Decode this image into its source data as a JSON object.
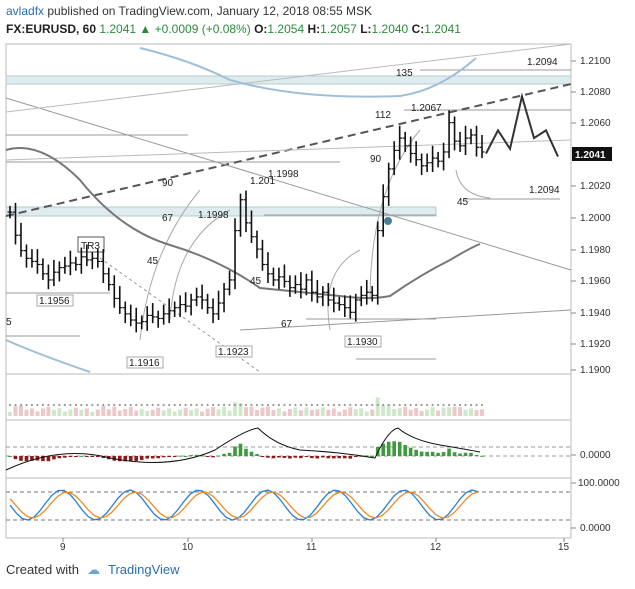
{
  "header": {
    "author": "avladfx",
    "published_text": "published on TradingView.com, January 12, 2018 08:55 MSK",
    "symbol": "FX:EURUSD, 60",
    "last": "1.2041",
    "change": "+0.0009 (+0.08%)",
    "o_label": "O:",
    "o_value": "1.2054",
    "h_label": "H:",
    "h_value": "1.2057",
    "l_label": "L:",
    "l_value": "1.2040",
    "c_label": "C:",
    "c_value": "1.2041"
  },
  "footer": {
    "created_with": "Created with",
    "brand": "TradingView"
  },
  "colors": {
    "up": "#2c8a3c",
    "bars": "#111111",
    "ma": "#777777",
    "blue_line": "#9fbfd8",
    "zone": "#dfecef",
    "macd_up": "#3e9a3e",
    "macd_down": "#8b1a1a",
    "stoch_k": "#2a7fd4",
    "stoch_d": "#f08a24"
  },
  "chart_data": {
    "type": "bar",
    "ohlc_series": "EURUSD hourly",
    "x_ticks": [
      "9",
      "10",
      "11",
      "12",
      "15"
    ],
    "y_ticks": [
      "1.2100",
      "1.2080",
      "1.2060",
      "1.2020",
      "1.2000",
      "1.1980",
      "1.1960",
      "1.1940",
      "1.1920",
      "1.1900"
    ],
    "ylim": [
      1.1897,
      1.2111
    ],
    "last_price": "1.2041",
    "annotations": [
      "1.2094",
      "135",
      "112",
      "1.2067",
      "90",
      "1.2094",
      "45",
      "1.201",
      "1.1998",
      "90",
      "67",
      "1.1998",
      "45",
      "TR3",
      "1.1956",
      "45",
      "67",
      "1.1923",
      "1.1916",
      "1.1930",
      "5"
    ],
    "closes": [
      1.2002,
      1.1987,
      1.1977,
      1.1972,
      1.197,
      1.1968,
      1.1962,
      1.1958,
      1.1963,
      1.1966,
      1.1967,
      1.1969,
      1.1968,
      1.1973,
      1.1971,
      1.1972,
      1.197,
      1.1962,
      1.1955,
      1.1946,
      1.194,
      1.1936,
      1.1932,
      1.193,
      1.1931,
      1.1935,
      1.1934,
      1.1933,
      1.1936,
      1.1938,
      1.194,
      1.1942,
      1.1941,
      1.1945,
      1.1947,
      1.1945,
      1.194,
      1.1936,
      1.1943,
      1.1952,
      1.1958,
      1.199,
      1.201,
      1.1995,
      1.1986,
      1.1978,
      1.1968,
      1.1962,
      1.1958,
      1.196,
      1.1957,
      1.1953,
      1.1955,
      1.1952,
      1.1958,
      1.195,
      1.1947,
      1.195,
      1.1945,
      1.1943,
      1.1942,
      1.194,
      1.1937,
      1.1945,
      1.1948,
      1.195,
      1.1948,
      1.199,
      1.2012,
      1.203,
      1.2042,
      1.205,
      1.2045,
      1.204,
      1.2036,
      1.2032,
      1.2034,
      1.2037,
      1.2035,
      1.2041,
      1.206,
      1.2048,
      1.2045,
      1.205,
      1.2052,
      1.2044,
      1.2041
    ],
    "forecast": [
      1.204,
      1.2055,
      1.2043,
      1.2077,
      1.205,
      1.2055,
      1.2038
    ],
    "volume_panel": {
      "series": "Volume"
    },
    "macd_panel": {
      "y_tick": "0.0000"
    },
    "stoch_panel": {
      "y_ticks": [
        "100.0000",
        "0.0000"
      ]
    }
  }
}
